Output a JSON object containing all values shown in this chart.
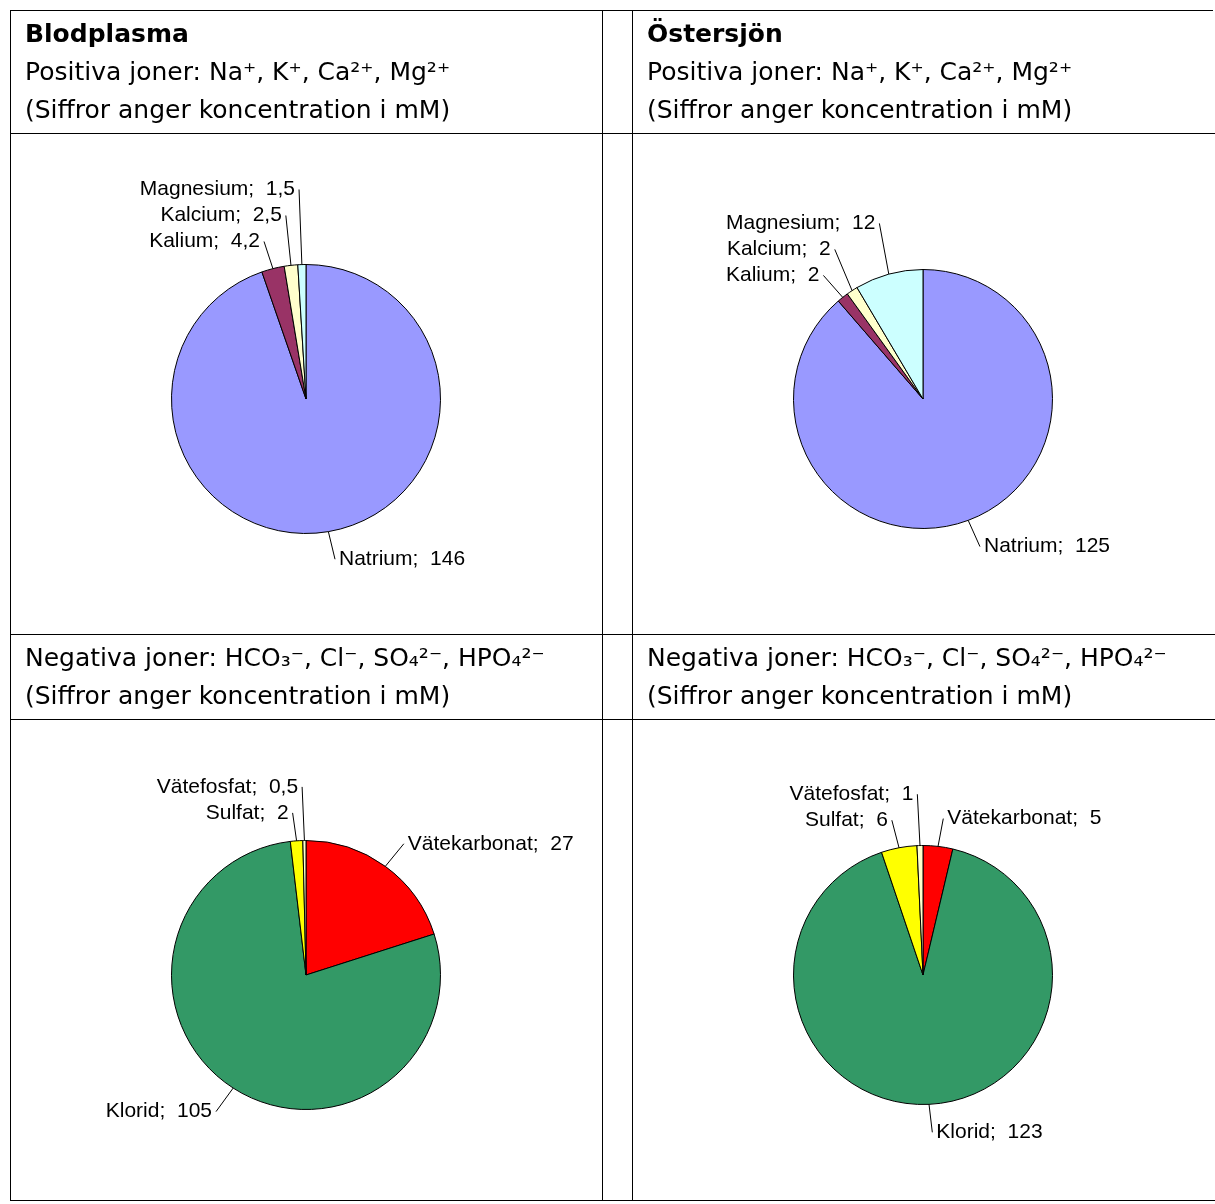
{
  "chart_data": [
    {
      "type": "pie",
      "title": "Blodplasma",
      "subtitle": "Positiva joner: Na⁺, K⁺, Ca²⁺, Mg²⁺",
      "annotations": [
        "(Siffror anger koncentration i mM)"
      ],
      "categories": [
        "Natrium",
        "Kalium",
        "Kalcium",
        "Magnesium"
      ],
      "values": [
        146,
        4.2,
        2.5,
        1.5
      ],
      "value_labels": [
        "146",
        "4,2",
        "2,5",
        "1,5"
      ],
      "colors": [
        "#9999ff",
        "#993366",
        "#ffffcc",
        "#ccffff"
      ]
    },
    {
      "type": "pie",
      "title": "Östersjön",
      "subtitle": "Positiva joner: Na⁺, K⁺, Ca²⁺, Mg²⁺",
      "annotations": [
        "(Siffror anger koncentration i mM)"
      ],
      "categories": [
        "Natrium",
        "Kalium",
        "Kalcium",
        "Magnesium"
      ],
      "values": [
        125,
        2,
        2,
        12
      ],
      "value_labels": [
        "125",
        "2",
        "2",
        "12"
      ],
      "colors": [
        "#9999ff",
        "#993366",
        "#ffffcc",
        "#ccffff"
      ]
    },
    {
      "type": "pie",
      "subtitle": "Negativa joner: HCO₃⁻, Cl⁻, SO₄²⁻, HPO₄²⁻",
      "annotations": [
        "(Siffror anger koncentration i mM)"
      ],
      "categories": [
        "Vätekarbonat",
        "Klorid",
        "Sulfat",
        "Vätefosfat"
      ],
      "values": [
        27,
        105,
        2,
        0.5
      ],
      "value_labels": [
        "27",
        "105",
        "2",
        "0,5"
      ],
      "colors": [
        "#ff0000",
        "#339966",
        "#ffff00",
        "#ffffcc"
      ]
    },
    {
      "type": "pie",
      "subtitle": "Negativa joner: HCO₃⁻, Cl⁻, SO₄²⁻, HPO₄²⁻",
      "annotations": [
        "(Siffror anger koncentration i mM)"
      ],
      "categories": [
        "Vätekarbonat",
        "Klorid",
        "Sulfat",
        "Vätefosfat"
      ],
      "values": [
        5,
        123,
        6,
        1
      ],
      "value_labels": [
        "5",
        "123",
        "6",
        "1"
      ],
      "colors": [
        "#ff0000",
        "#339966",
        "#ffff00",
        "#ffffcc"
      ]
    }
  ]
}
